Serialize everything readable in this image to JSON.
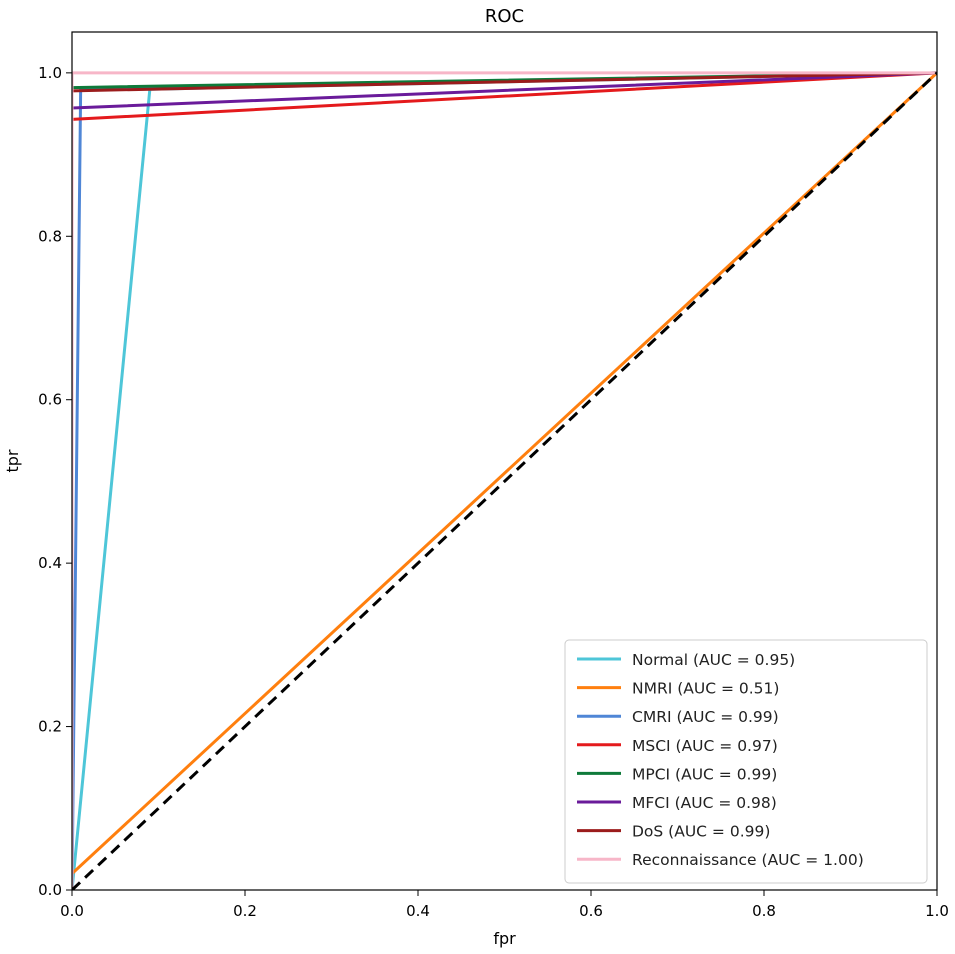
{
  "chart_data": {
    "type": "line",
    "title": "ROC",
    "xlabel": "fpr",
    "ylabel": "tpr",
    "xlim": [
      0.0,
      1.0
    ],
    "ylim": [
      0.0,
      1.05
    ],
    "xticks": [
      0.0,
      0.2,
      0.4,
      0.6,
      0.8,
      1.0
    ],
    "yticks": [
      0.0,
      0.2,
      0.4,
      0.6,
      0.8,
      1.0
    ],
    "xtick_labels": [
      "0.0",
      "0.2",
      "0.4",
      "0.6",
      "0.8",
      "1.0"
    ],
    "ytick_labels": [
      "0.0",
      "0.2",
      "0.4",
      "0.6",
      "0.8",
      "1.0"
    ],
    "legend_position": "lower-right",
    "series": [
      {
        "name": "Normal",
        "legend": "Normal (AUC = 0.95)",
        "color": "#4ec6d8",
        "x": [
          0.0,
          0.09,
          1.0
        ],
        "y": [
          0.0,
          0.98,
          1.0
        ]
      },
      {
        "name": "NMRI",
        "legend": "NMRI (AUC = 0.51)",
        "color": "#ff7f0e",
        "x": [
          0.0,
          1.0
        ],
        "y": [
          0.02,
          1.0
        ]
      },
      {
        "name": "CMRI",
        "legend": "CMRI (AUC = 0.99)",
        "color": "#4f86d6",
        "x": [
          0.0,
          0.01,
          1.0
        ],
        "y": [
          0.0,
          0.98,
          1.0
        ]
      },
      {
        "name": "MSCI",
        "legend": "MSCI (AUC = 0.97)",
        "color": "#e41a1c",
        "x": [
          0.0,
          0.0,
          1.0
        ],
        "y": [
          0.0,
          0.943,
          1.0
        ]
      },
      {
        "name": "MPCI",
        "legend": "MPCI (AUC = 0.99)",
        "color": "#0e7a3a",
        "x": [
          0.0,
          0.0,
          1.0
        ],
        "y": [
          0.0,
          0.982,
          1.0
        ]
      },
      {
        "name": "MFCI",
        "legend": "MFCI (AUC = 0.98)",
        "color": "#6a1b9a",
        "x": [
          0.0,
          0.0,
          1.0
        ],
        "y": [
          0.0,
          0.957,
          1.0
        ]
      },
      {
        "name": "DoS",
        "legend": "DoS (AUC = 0.99)",
        "color": "#9b1c1c",
        "x": [
          0.0,
          0.0,
          1.0
        ],
        "y": [
          0.0,
          0.978,
          1.0
        ]
      },
      {
        "name": "Reconnaissance",
        "legend": "Reconnaissance (AUC = 1.00)",
        "color": "#f7b6c8",
        "x": [
          0.0,
          0.0,
          1.0
        ],
        "y": [
          0.0,
          1.0,
          1.0
        ]
      }
    ],
    "reference_line": {
      "x": [
        0.0,
        1.0
      ],
      "y": [
        0.0,
        1.0
      ],
      "color": "#000000",
      "style": "dashed"
    }
  }
}
